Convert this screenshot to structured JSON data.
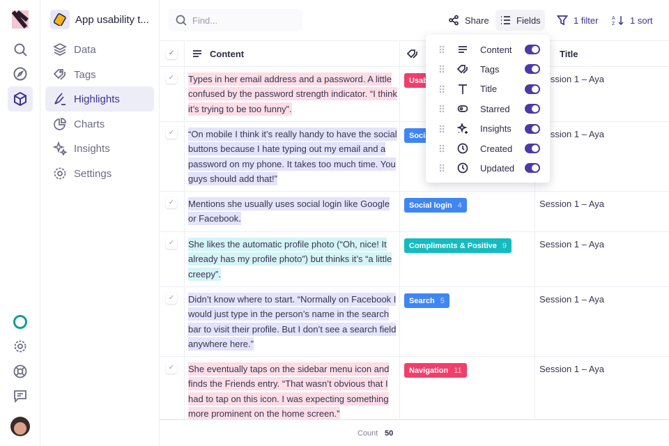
{
  "rail": {
    "icons": [
      "app-logo",
      "search-icon",
      "compass-icon",
      "cube-icon",
      "status-ring-icon",
      "gear-icon",
      "help-icon",
      "chat-icon",
      "avatar"
    ]
  },
  "project": {
    "title": "App usability t..."
  },
  "nav": {
    "items": [
      {
        "label": "Data",
        "icon": "layers-icon"
      },
      {
        "label": "Tags",
        "icon": "tags-icon"
      },
      {
        "label": "Highlights",
        "icon": "highlighter-icon",
        "active": true
      },
      {
        "label": "Charts",
        "icon": "pie-chart-icon"
      },
      {
        "label": "Insights",
        "icon": "sparkles-icon"
      },
      {
        "label": "Settings",
        "icon": "gear-icon"
      }
    ]
  },
  "toolbar": {
    "search_placeholder": "Find...",
    "share": "Share",
    "fields": "Fields",
    "filter": "1 filter",
    "sort": "1 sort"
  },
  "table": {
    "headers": {
      "content": "Content",
      "title": "Title"
    },
    "rows": [
      {
        "content": "Types in her email address and a password. A little confused by the password strength indicator. “I think it’s trying to be too funny”.",
        "hl": "#fddde6",
        "tag": "Usability",
        "tag_count": "",
        "tag_color": "#f23e6b",
        "title": "Session 1 – Aya"
      },
      {
        "content": "“On mobile I think it’s really handy to have the social buttons because I hate typing out my email and a password on my phone. It takes too much time. You guys should add that!”",
        "hl": "#e3e3fb",
        "tag": "Social login",
        "tag_count": "",
        "tag_color": "#3f86f3",
        "title": "Session 1 – Aya"
      },
      {
        "content": "Mentions she usually uses social login like Google or Facebook.",
        "hl": "#e3e3fb",
        "tag": "Social login",
        "tag_count": "4",
        "tag_color": "#3f86f3",
        "title": "Session 1 – Aya"
      },
      {
        "content": "She likes the automatic profile photo (“Oh, nice! It already has my profile photo”) but thinks it’s “a little creepy”.",
        "hl": "#d5f4f6",
        "tag": "Compliments & Positive",
        "tag_count": "9",
        "tag_color": "#14bcc0",
        "title": "Session 1 – Aya"
      },
      {
        "content": "Didn’t know where to start. “Normally on Facebook I would just type in the person’s name in the search bar to visit their profile. But I don’t see a search field anywhere here.”",
        "hl": "#e3e3fb",
        "tag": "Search",
        "tag_count": "5",
        "tag_color": "#3f86f3",
        "title": "Session 1 – Aya"
      },
      {
        "content": "She eventually taps on the sidebar menu icon and finds the Friends entry. “That wasn’t obvious that I had to tap on this icon. I was expecting something more prominent on the home screen.”",
        "hl": "#fddde6",
        "tag": "Navigation",
        "tag_count": "11",
        "tag_color": "#f23e6b",
        "title": "Session 1 – Aya"
      }
    ]
  },
  "footer": {
    "count_label": "Count",
    "count_value": "50"
  },
  "fields_menu": {
    "items": [
      {
        "label": "Content",
        "on": true
      },
      {
        "label": "Tags",
        "on": true
      },
      {
        "label": "Title",
        "on": true
      },
      {
        "label": "Starred",
        "on": true
      },
      {
        "label": "Insights",
        "on": true
      },
      {
        "label": "Created",
        "on": true
      },
      {
        "label": "Updated",
        "on": true
      }
    ]
  },
  "colors": {
    "accent": "#4b3aa6",
    "pink_tag": "#f23e6b",
    "blue_tag": "#3f86f3",
    "teal_tag": "#14bcc0"
  }
}
